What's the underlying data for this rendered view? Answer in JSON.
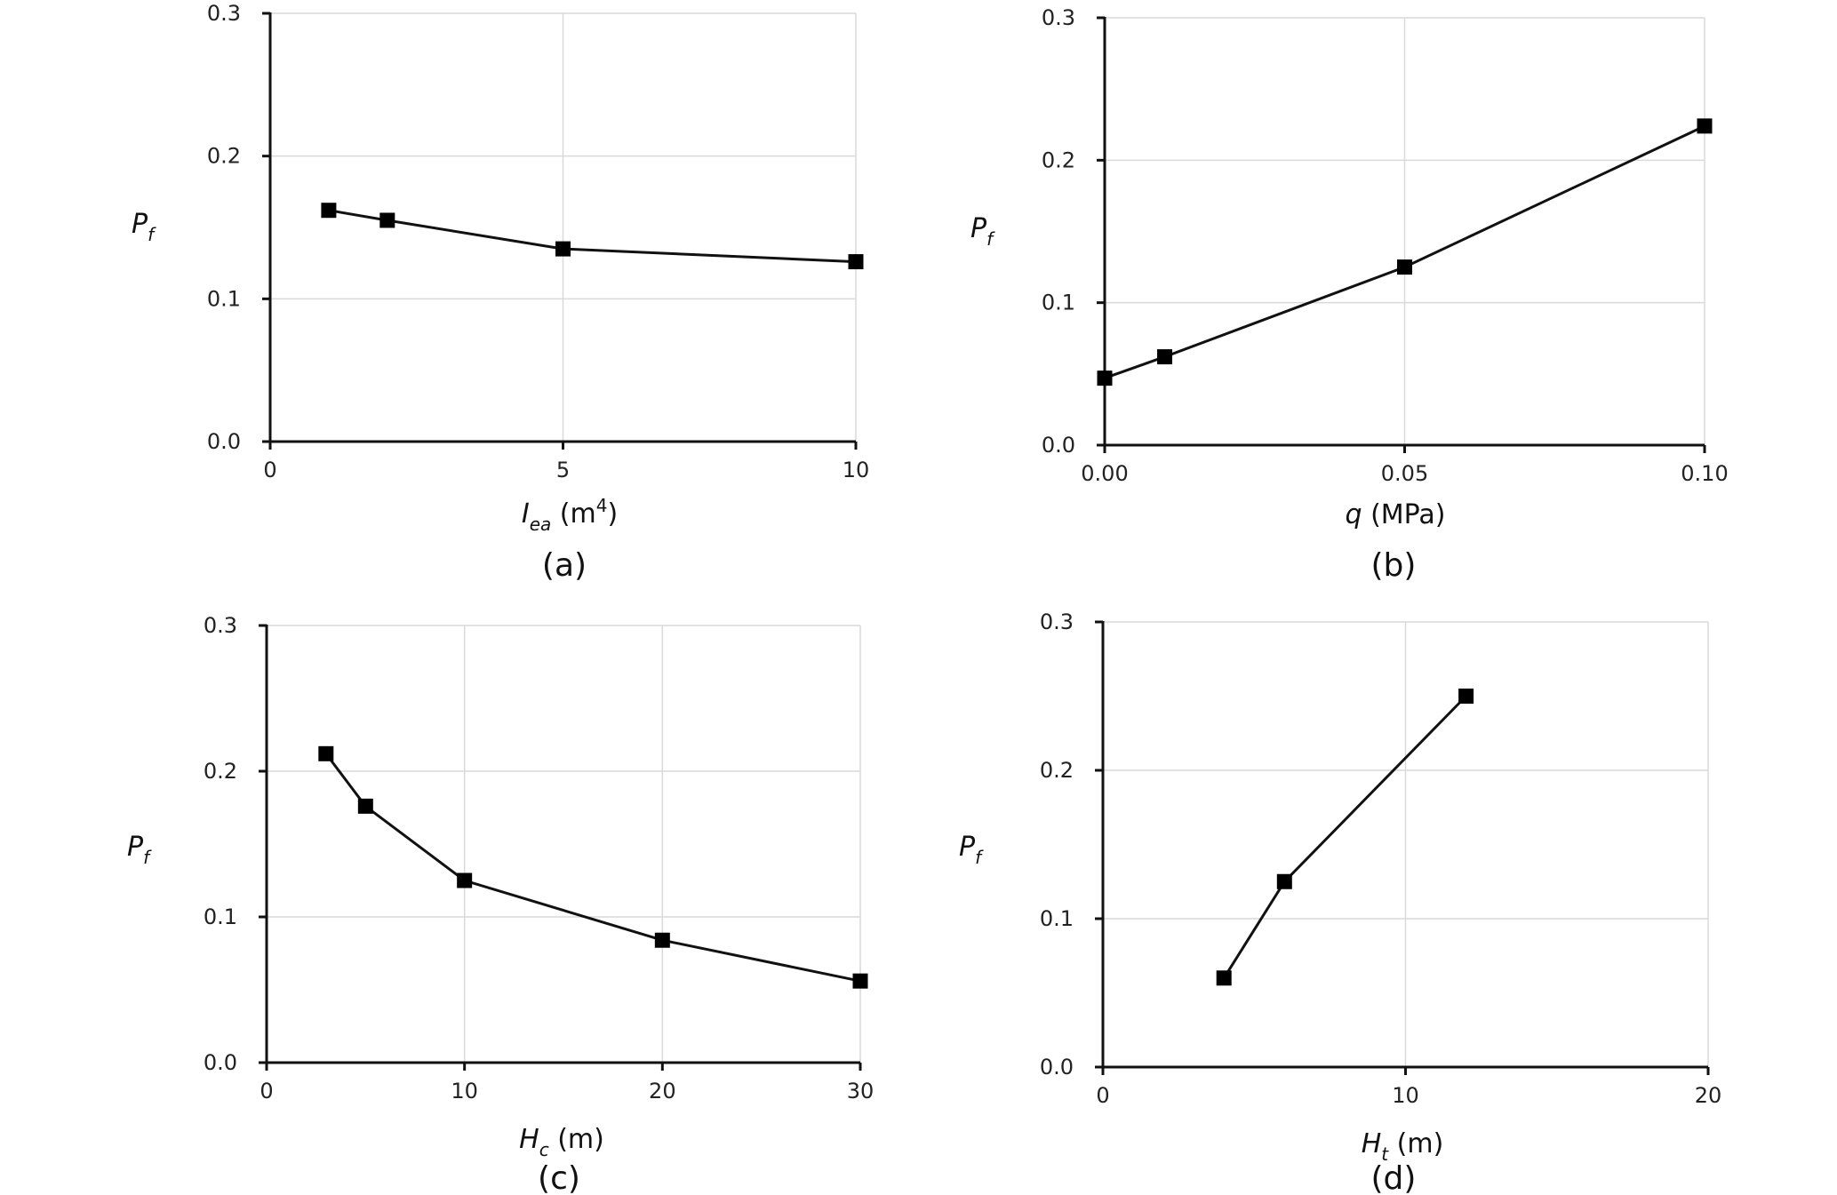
{
  "chart_data": [
    {
      "type": "line",
      "panel_label": "(a)",
      "xlabel_main": "I",
      "xlabel_sub": "ea",
      "xlabel_unit": " (m",
      "xlabel_sup": "4",
      "xlabel_close": ")",
      "ylabel_main": "P",
      "ylabel_sub": "f",
      "x": [
        1,
        2,
        5,
        10
      ],
      "y": [
        0.162,
        0.155,
        0.135,
        0.126
      ],
      "xlim": [
        0,
        10
      ],
      "ylim": [
        0.0,
        0.3
      ],
      "xticks": [
        0,
        5,
        10
      ],
      "xtick_labels": [
        "0",
        "5",
        "10"
      ],
      "yticks": [
        0.0,
        0.1,
        0.2,
        0.3
      ],
      "ytick_labels": [
        "0.0",
        "0.1",
        "0.2",
        "0.3"
      ],
      "grid": true
    },
    {
      "type": "line",
      "panel_label": "(b)",
      "xlabel_main": "q",
      "xlabel_sub": "",
      "xlabel_unit": " (MPa)",
      "xlabel_sup": "",
      "xlabel_close": "",
      "ylabel_main": "P",
      "ylabel_sub": "f",
      "x": [
        0.0,
        0.01,
        0.05,
        0.1
      ],
      "y": [
        0.047,
        0.062,
        0.125,
        0.224
      ],
      "xlim": [
        0.0,
        0.1
      ],
      "ylim": [
        0.0,
        0.3
      ],
      "xticks": [
        0.0,
        0.05,
        0.1
      ],
      "xtick_labels": [
        "0.00",
        "0.05",
        "0.10"
      ],
      "yticks": [
        0.0,
        0.1,
        0.2,
        0.3
      ],
      "ytick_labels": [
        "0.0",
        "0.1",
        "0.2",
        "0.3"
      ],
      "grid": true
    },
    {
      "type": "line",
      "panel_label": "(c)",
      "xlabel_main": "H",
      "xlabel_sub": "c",
      "xlabel_unit": " (m)",
      "xlabel_sup": "",
      "xlabel_close": "",
      "ylabel_main": "P",
      "ylabel_sub": "f",
      "x": [
        3,
        5,
        10,
        20,
        30
      ],
      "y": [
        0.212,
        0.176,
        0.125,
        0.084,
        0.056
      ],
      "xlim": [
        0,
        30
      ],
      "ylim": [
        0.0,
        0.3
      ],
      "xticks": [
        0,
        10,
        20,
        30
      ],
      "xtick_labels": [
        "0",
        "10",
        "20",
        "30"
      ],
      "yticks": [
        0.0,
        0.1,
        0.2,
        0.3
      ],
      "ytick_labels": [
        "0.0",
        "0.1",
        "0.2",
        "0.3"
      ],
      "grid": true
    },
    {
      "type": "line",
      "panel_label": "(d)",
      "xlabel_main": "H",
      "xlabel_sub": "t",
      "xlabel_unit": " (m)",
      "xlabel_sup": "",
      "xlabel_close": "",
      "ylabel_main": "P",
      "ylabel_sub": "f",
      "x": [
        4,
        6,
        12
      ],
      "y": [
        0.06,
        0.125,
        0.25
      ],
      "xlim": [
        0,
        20
      ],
      "ylim": [
        0.0,
        0.3
      ],
      "xticks": [
        0,
        10,
        20
      ],
      "xtick_labels": [
        "0",
        "10",
        "20"
      ],
      "yticks": [
        0.0,
        0.1,
        0.2,
        0.3
      ],
      "ytick_labels": [
        "0.0",
        "0.1",
        "0.2",
        "0.3"
      ],
      "grid": true
    }
  ]
}
